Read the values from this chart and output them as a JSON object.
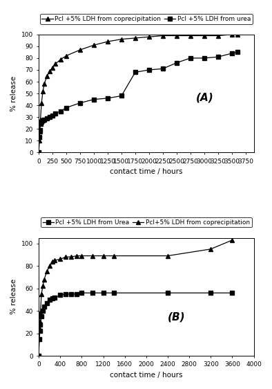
{
  "panel_A": {
    "title_label": "(A)",
    "legend": [
      "Pcl +5% LDH from coprecipitation",
      "Pcl +5% LDH from urea"
    ],
    "coprecip_x": [
      0,
      10,
      20,
      30,
      50,
      75,
      100,
      150,
      200,
      250,
      300,
      400,
      500,
      750,
      1000,
      1250,
      1500,
      1750,
      2000,
      2250,
      2500,
      2750,
      3000,
      3250,
      3500,
      3600
    ],
    "coprecip_y": [
      0,
      10,
      18,
      28,
      42,
      52,
      58,
      65,
      69,
      72,
      75,
      79,
      82,
      87,
      91,
      94,
      96,
      97,
      98,
      99,
      99,
      99,
      99,
      99,
      100,
      100
    ],
    "urea_x": [
      0,
      10,
      20,
      30,
      50,
      75,
      100,
      150,
      200,
      250,
      300,
      400,
      500,
      750,
      1000,
      1250,
      1500,
      1750,
      2000,
      2250,
      2500,
      2750,
      3000,
      3250,
      3500,
      3600
    ],
    "urea_y": [
      0,
      13,
      19,
      24,
      26,
      27,
      28,
      29,
      30,
      31,
      33,
      35,
      38,
      42,
      45,
      46,
      48,
      68,
      70,
      71,
      76,
      80,
      80,
      81,
      84,
      85
    ],
    "xlabel": "contact time / hours",
    "ylabel": "% release",
    "xlim": [
      0,
      3900
    ],
    "ylim": [
      0,
      100
    ],
    "xticks": [
      0,
      250,
      500,
      750,
      1000,
      1250,
      1500,
      1750,
      2000,
      2250,
      2500,
      2750,
      3000,
      3250,
      3500,
      3750
    ],
    "yticks": [
      0,
      10,
      20,
      30,
      40,
      50,
      60,
      70,
      80,
      90,
      100
    ]
  },
  "panel_B": {
    "title_label": "(B)",
    "legend": [
      "Pcl +5% LDH from Urea",
      "Pcl+5% LDH from coprecipitation"
    ],
    "coprecip_x": [
      0,
      10,
      20,
      30,
      50,
      75,
      100,
      150,
      200,
      250,
      300,
      400,
      500,
      600,
      700,
      800,
      1000,
      1200,
      1400,
      2400,
      3200,
      3600
    ],
    "coprecip_y": [
      0,
      25,
      30,
      38,
      55,
      62,
      68,
      75,
      80,
      84,
      85,
      86,
      88,
      88,
      89,
      89,
      89,
      89,
      89,
      89,
      95,
      103
    ],
    "urea_x": [
      0,
      10,
      20,
      30,
      50,
      75,
      100,
      150,
      200,
      250,
      300,
      400,
      500,
      600,
      700,
      800,
      1000,
      1200,
      1400,
      2400,
      3200,
      3600
    ],
    "urea_y": [
      0,
      15,
      22,
      28,
      35,
      40,
      44,
      47,
      50,
      51,
      52,
      54,
      55,
      55,
      55,
      56,
      56,
      56,
      56,
      56,
      56,
      56
    ],
    "xlabel": "contact time / hours",
    "ylabel": "% release",
    "xlim": [
      0,
      4000
    ],
    "ylim": [
      0,
      105
    ],
    "xticks": [
      0,
      400,
      800,
      1200,
      1600,
      2000,
      2400,
      2800,
      3200,
      3600,
      4000
    ],
    "yticks": [
      0,
      20,
      40,
      60,
      80,
      100
    ]
  },
  "line_color": "#000000",
  "marker_square": "s",
  "marker_triangle": "^",
  "marker_size": 4,
  "font_size_tick": 6.5,
  "font_size_label": 7.5,
  "font_size_legend": 6.5,
  "font_size_annot": 11,
  "bg_color": "#ffffff"
}
